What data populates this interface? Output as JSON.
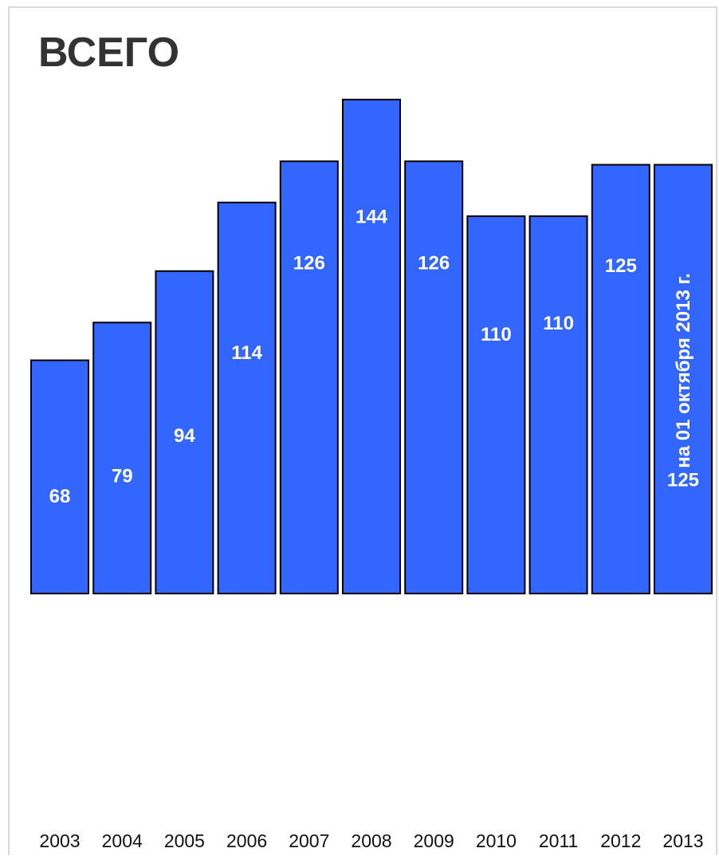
{
  "chart_data": {
    "type": "bar",
    "title": "ВСЕГО",
    "categories": [
      "2003",
      "2004",
      "2005",
      "2006",
      "2007",
      "2008",
      "2009",
      "2010",
      "2011",
      "2012",
      "2013"
    ],
    "values": [
      68,
      79,
      94,
      114,
      126,
      144,
      126,
      110,
      110,
      125,
      125
    ],
    "annotations": [
      {
        "category": "2013",
        "text": "на 01 октября  2013 г."
      }
    ],
    "ylim": [
      0,
      150
    ],
    "grid": false,
    "legend": "none",
    "colors": {
      "bar_fill": "#3366ff",
      "bar_stroke": "#000000",
      "label": "#ffffff",
      "title": "#333333"
    }
  }
}
